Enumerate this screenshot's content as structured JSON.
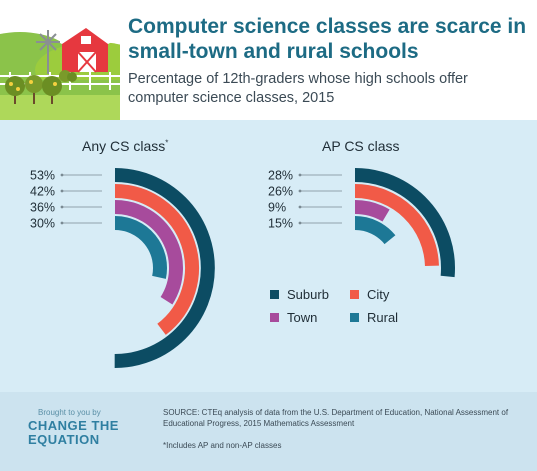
{
  "header": {
    "title": "Computer science classes are scarce in small-town and rural schools",
    "subtitle": "Percentage of 12th-graders whose high schools offer computer science classes, 2015"
  },
  "colors": {
    "suburb": "#0c4c63",
    "city": "#f15a47",
    "town": "#a74b9c",
    "rural": "#1d7896",
    "title": "#1d6b84"
  },
  "chart_data": [
    {
      "type": "radial-bar",
      "title": "Any CS class",
      "title_marker": "*",
      "series": [
        {
          "name": "Suburb",
          "value": 53,
          "label": "53%"
        },
        {
          "name": "City",
          "value": 42,
          "label": "42%"
        },
        {
          "name": "Town",
          "value": 36,
          "label": "36%"
        },
        {
          "name": "Rural",
          "value": 30,
          "label": "30%"
        }
      ]
    },
    {
      "type": "radial-bar",
      "title": "AP CS class",
      "series": [
        {
          "name": "Suburb",
          "value": 28,
          "label": "28%"
        },
        {
          "name": "City",
          "value": 26,
          "label": "26%"
        },
        {
          "name": "Town",
          "value": 9,
          "label": "9%"
        },
        {
          "name": "Rural",
          "value": 15,
          "label": "15%"
        }
      ]
    }
  ],
  "legend": [
    {
      "key": "suburb",
      "label": "Suburb"
    },
    {
      "key": "city",
      "label": "City"
    },
    {
      "key": "town",
      "label": "Town"
    },
    {
      "key": "rural",
      "label": "Rural"
    }
  ],
  "footer": {
    "brought_by": "Brought to you by",
    "logo_line1": "CHANGE THE",
    "logo_line2": "EQUATION",
    "source": "SOURCE: CTEq analysis of data from the U.S. Department of Education, National Assessment of Educational Progress, 2015 Mathematics Assessment",
    "footnote": "*Includes AP and non-AP classes"
  }
}
